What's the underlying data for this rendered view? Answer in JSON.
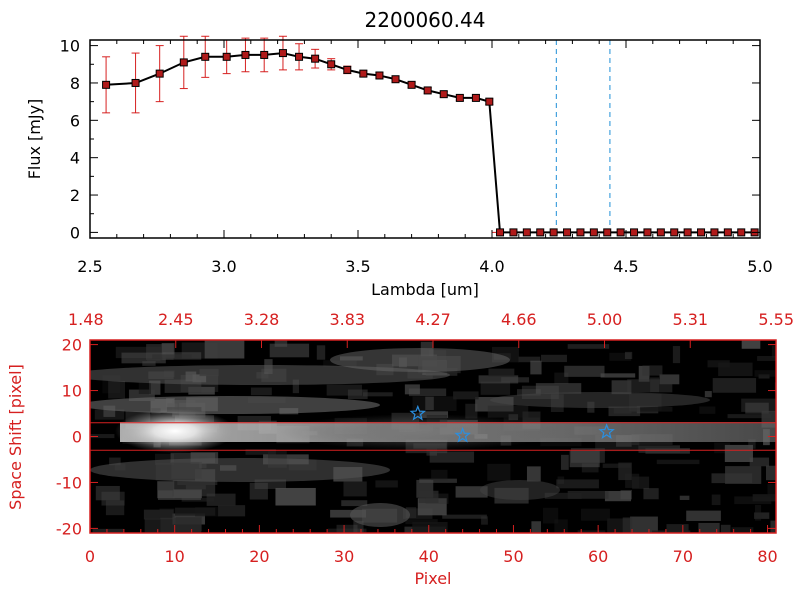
{
  "chart_data": [
    {
      "type": "line",
      "title": "2200060.44",
      "xlabel": "Lambda [um]",
      "ylabel": "Flux [mJy]",
      "xlim": [
        2.5,
        5.0
      ],
      "ylim": [
        -0.3,
        10.3
      ],
      "x_ticks": [
        "2.5",
        "3.0",
        "3.5",
        "4.0",
        "4.5",
        "5.0"
      ],
      "y_ticks": [
        "0",
        "2",
        "4",
        "6",
        "8",
        "10"
      ],
      "grid": false,
      "series": [
        {
          "x": [
            2.56,
            2.67,
            2.76,
            2.85,
            2.93,
            3.01,
            3.08,
            3.15,
            3.22,
            3.28,
            3.34,
            3.4,
            3.46,
            3.52,
            3.58,
            3.64,
            3.7,
            3.76,
            3.82,
            3.88,
            3.94,
            3.99,
            4.03,
            4.08,
            4.13,
            4.18,
            4.23,
            4.28,
            4.33,
            4.38,
            4.43,
            4.48,
            4.53,
            4.58,
            4.63,
            4.68,
            4.73,
            4.78,
            4.83,
            4.88,
            4.93,
            4.98
          ],
          "y": [
            7.9,
            8.0,
            8.5,
            9.1,
            9.4,
            9.4,
            9.5,
            9.5,
            9.6,
            9.4,
            9.3,
            9.0,
            8.7,
            8.5,
            8.4,
            8.2,
            7.9,
            7.6,
            7.4,
            7.2,
            7.2,
            7.0,
            0.0,
            0.0,
            0.0,
            0.0,
            0.0,
            0.0,
            0.0,
            0.0,
            0.0,
            0.0,
            0.0,
            0.0,
            0.0,
            0.0,
            0.0,
            0.0,
            0.0,
            0.0,
            0.0,
            0.0
          ],
          "yerr": [
            1.5,
            1.6,
            1.5,
            1.4,
            1.1,
            0.9,
            0.9,
            0.9,
            0.9,
            0.7,
            0.5,
            0.3,
            0.2,
            0.15,
            0.15,
            0.15,
            0.15,
            0.15,
            0.15,
            0.15,
            0.15,
            0.15,
            0,
            0,
            0,
            0,
            0,
            0,
            0,
            0,
            0,
            0,
            0,
            0,
            0,
            0,
            0,
            0,
            0,
            0,
            0,
            0
          ]
        }
      ],
      "reference_lines_x": [
        4.24,
        4.44
      ],
      "colors": {
        "line": "#000000",
        "marker": "#b01a1a",
        "errorbar": "#d62020",
        "reference": "#1f8fd6",
        "zero_line": "#d62020"
      }
    },
    {
      "type": "heatmap",
      "xlabel": "Pixel",
      "ylabel": "Space Shift [pixel]",
      "xlim": [
        0,
        81
      ],
      "ylim": [
        -21,
        21
      ],
      "x_ticks": [
        "0",
        "10",
        "20",
        "30",
        "40",
        "50",
        "60",
        "70",
        "80"
      ],
      "y_ticks": [
        "-20",
        "-10",
        "0",
        "10",
        "20"
      ],
      "top_axis_ticks": [
        "1.48",
        "2.45",
        "3.28",
        "3.83",
        "4.27",
        "4.66",
        "5.00",
        "5.31",
        "5.55"
      ],
      "extraction_band": [
        -3,
        3
      ],
      "markers": [
        {
          "x": 38.7,
          "y": 5.0
        },
        {
          "x": 44.0,
          "y": 0.2
        },
        {
          "x": 61.0,
          "y": 1.0
        }
      ],
      "colormap": "grayscale",
      "colors": {
        "axis": "#d62020",
        "band": "#d62020",
        "marker": "#2a8fe0"
      }
    }
  ]
}
